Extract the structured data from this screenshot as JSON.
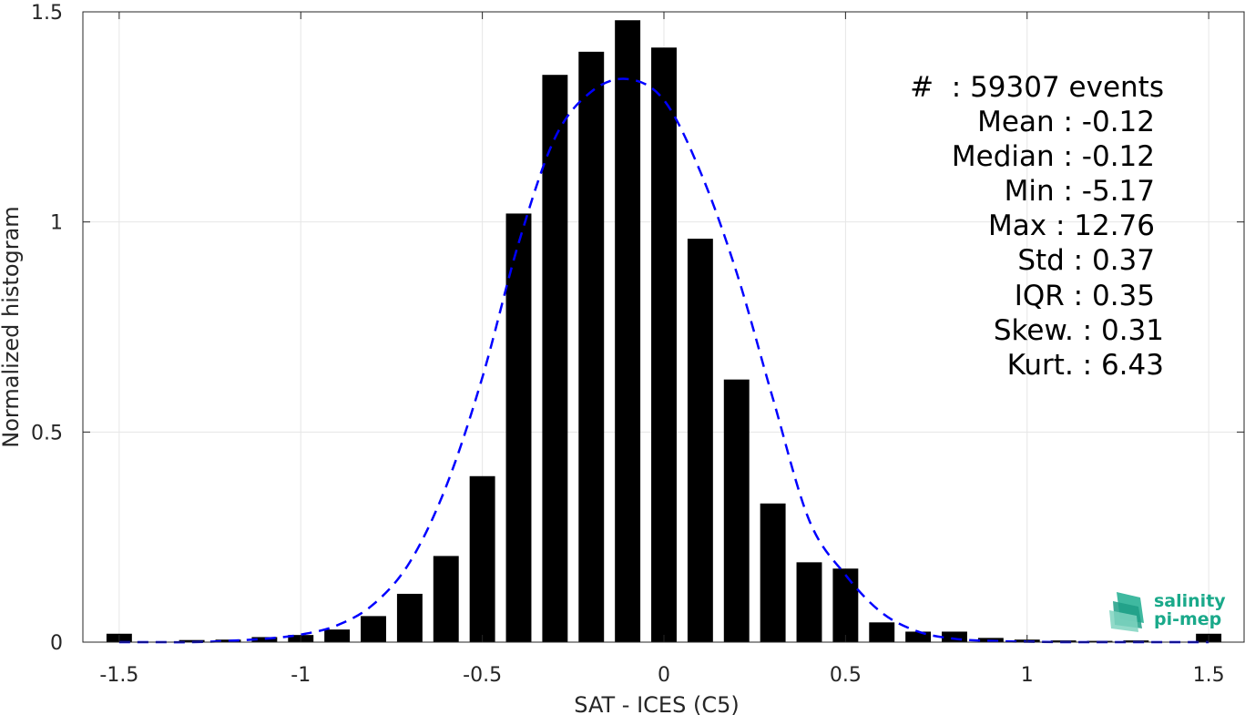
{
  "chart_data": {
    "type": "bar",
    "xlabel": "SAT - ICES (C5)",
    "ylabel": "Normalized histogram",
    "xlim": [
      -1.6,
      1.6
    ],
    "ylim": [
      0,
      1.5
    ],
    "grid": true,
    "x_ticks": [
      -1.5,
      -1,
      -0.5,
      0,
      0.5,
      1,
      1.5
    ],
    "x_tick_labels": [
      "-1.5",
      "-1",
      "-0.5",
      "0",
      "0.5",
      "1",
      "1.5"
    ],
    "y_ticks": [
      0,
      0.5,
      1,
      1.5
    ],
    "y_tick_labels": [
      "0",
      "0.5",
      "1",
      "1.5"
    ],
    "bar_width": 0.07,
    "series": [
      {
        "style": "bar",
        "color": "#000000",
        "x": [
          -1.5,
          -1.4,
          -1.3,
          -1.2,
          -1.1,
          -1.0,
          -0.9,
          -0.8,
          -0.7,
          -0.6,
          -0.5,
          -0.4,
          -0.3,
          -0.2,
          -0.1,
          0.0,
          0.1,
          0.2,
          0.3,
          0.4,
          0.5,
          0.6,
          0.7,
          0.8,
          0.9,
          1.0,
          1.1,
          1.2,
          1.3,
          1.4,
          1.5
        ],
        "values": [
          0.02,
          0.0,
          0.005,
          0.006,
          0.012,
          0.017,
          0.03,
          0.062,
          0.115,
          0.205,
          0.395,
          1.02,
          1.35,
          1.405,
          1.48,
          1.415,
          0.96,
          0.625,
          0.33,
          0.19,
          0.175,
          0.047,
          0.025,
          0.025,
          0.01,
          0.006,
          0.004,
          0.003,
          0.004,
          0.0,
          0.02
        ]
      },
      {
        "style": "dashed-line",
        "color": "#0000ff",
        "x": [
          -1.5,
          -1.4,
          -1.3,
          -1.2,
          -1.1,
          -1.0,
          -0.9,
          -0.8,
          -0.7,
          -0.6,
          -0.5,
          -0.4,
          -0.3,
          -0.2,
          -0.1,
          0.0,
          0.1,
          0.2,
          0.3,
          0.4,
          0.5,
          0.6,
          0.7,
          0.8,
          0.9,
          1.0,
          1.1,
          1.2,
          1.3,
          1.4,
          1.5
        ],
        "values": [
          0.0,
          0.0,
          0.0,
          0.003,
          0.008,
          0.018,
          0.04,
          0.09,
          0.19,
          0.37,
          0.63,
          0.95,
          1.2,
          1.31,
          1.34,
          1.29,
          1.12,
          0.88,
          0.58,
          0.29,
          0.16,
          0.07,
          0.025,
          0.008,
          0.003,
          0.001,
          0.0,
          0.0,
          0.0,
          0.0,
          0.0
        ]
      }
    ],
    "annotations": [
      "#  : 59307 events",
      "Mean : -0.12",
      "Median : -0.12",
      "Min : -5.17",
      "Max : 12.76",
      "Std : 0.37",
      "IQR : 0.35",
      "Skew. : 0.31",
      "Kurt. : 6.43"
    ]
  },
  "logo": {
    "line1": "salinity",
    "line2": "pi-mep"
  }
}
